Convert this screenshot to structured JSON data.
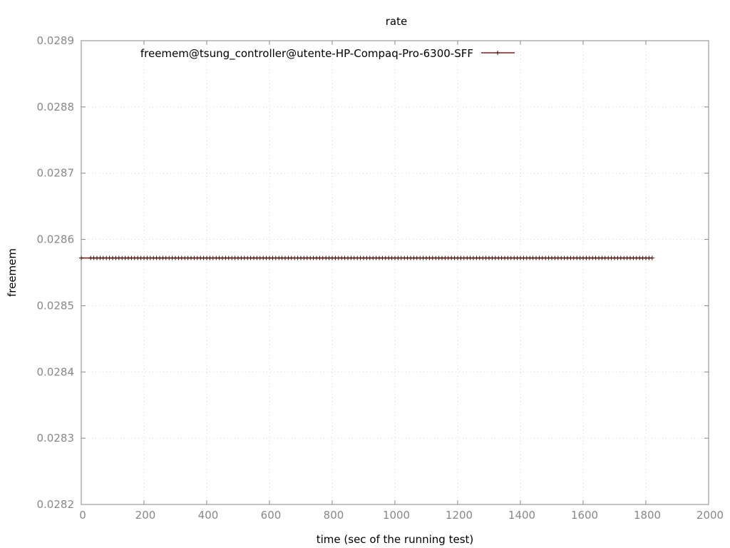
{
  "chart_data": {
    "type": "line",
    "title": "rate",
    "xlabel": "time (sec of the running test)",
    "ylabel": "freemem",
    "xlim": [
      0,
      2000
    ],
    "ylim": [
      0.0282,
      0.0289
    ],
    "x_ticks": [
      0,
      200,
      400,
      600,
      800,
      1000,
      1200,
      1400,
      1600,
      1800,
      2000
    ],
    "x_tick_labels": [
      "0",
      "200",
      "400",
      "600",
      "800",
      "1000",
      "1200",
      "1400",
      "1600",
      "1800",
      "2000"
    ],
    "y_ticks": [
      0.0282,
      0.0283,
      0.0284,
      0.0285,
      0.0286,
      0.0287,
      0.0288,
      0.0289
    ],
    "y_tick_labels": [
      "0.0282",
      "0.0283",
      "0.0284",
      "0.0285",
      "0.0286",
      "0.0287",
      "0.0288",
      "0.0289"
    ],
    "grid": true,
    "legend_position": "top-left",
    "series": [
      {
        "name": "freemem@tsung_controller@utente-HP-Compaq-Pro-6300-SFF",
        "color": "#8b1a1a",
        "marker": "plus",
        "points": [
          {
            "x": 0,
            "y": 0.028572
          },
          {
            "x": 30,
            "y": 0.028572
          },
          {
            "x": 1820,
            "y": 0.028572
          }
        ],
        "sample_interval": 10
      }
    ]
  }
}
